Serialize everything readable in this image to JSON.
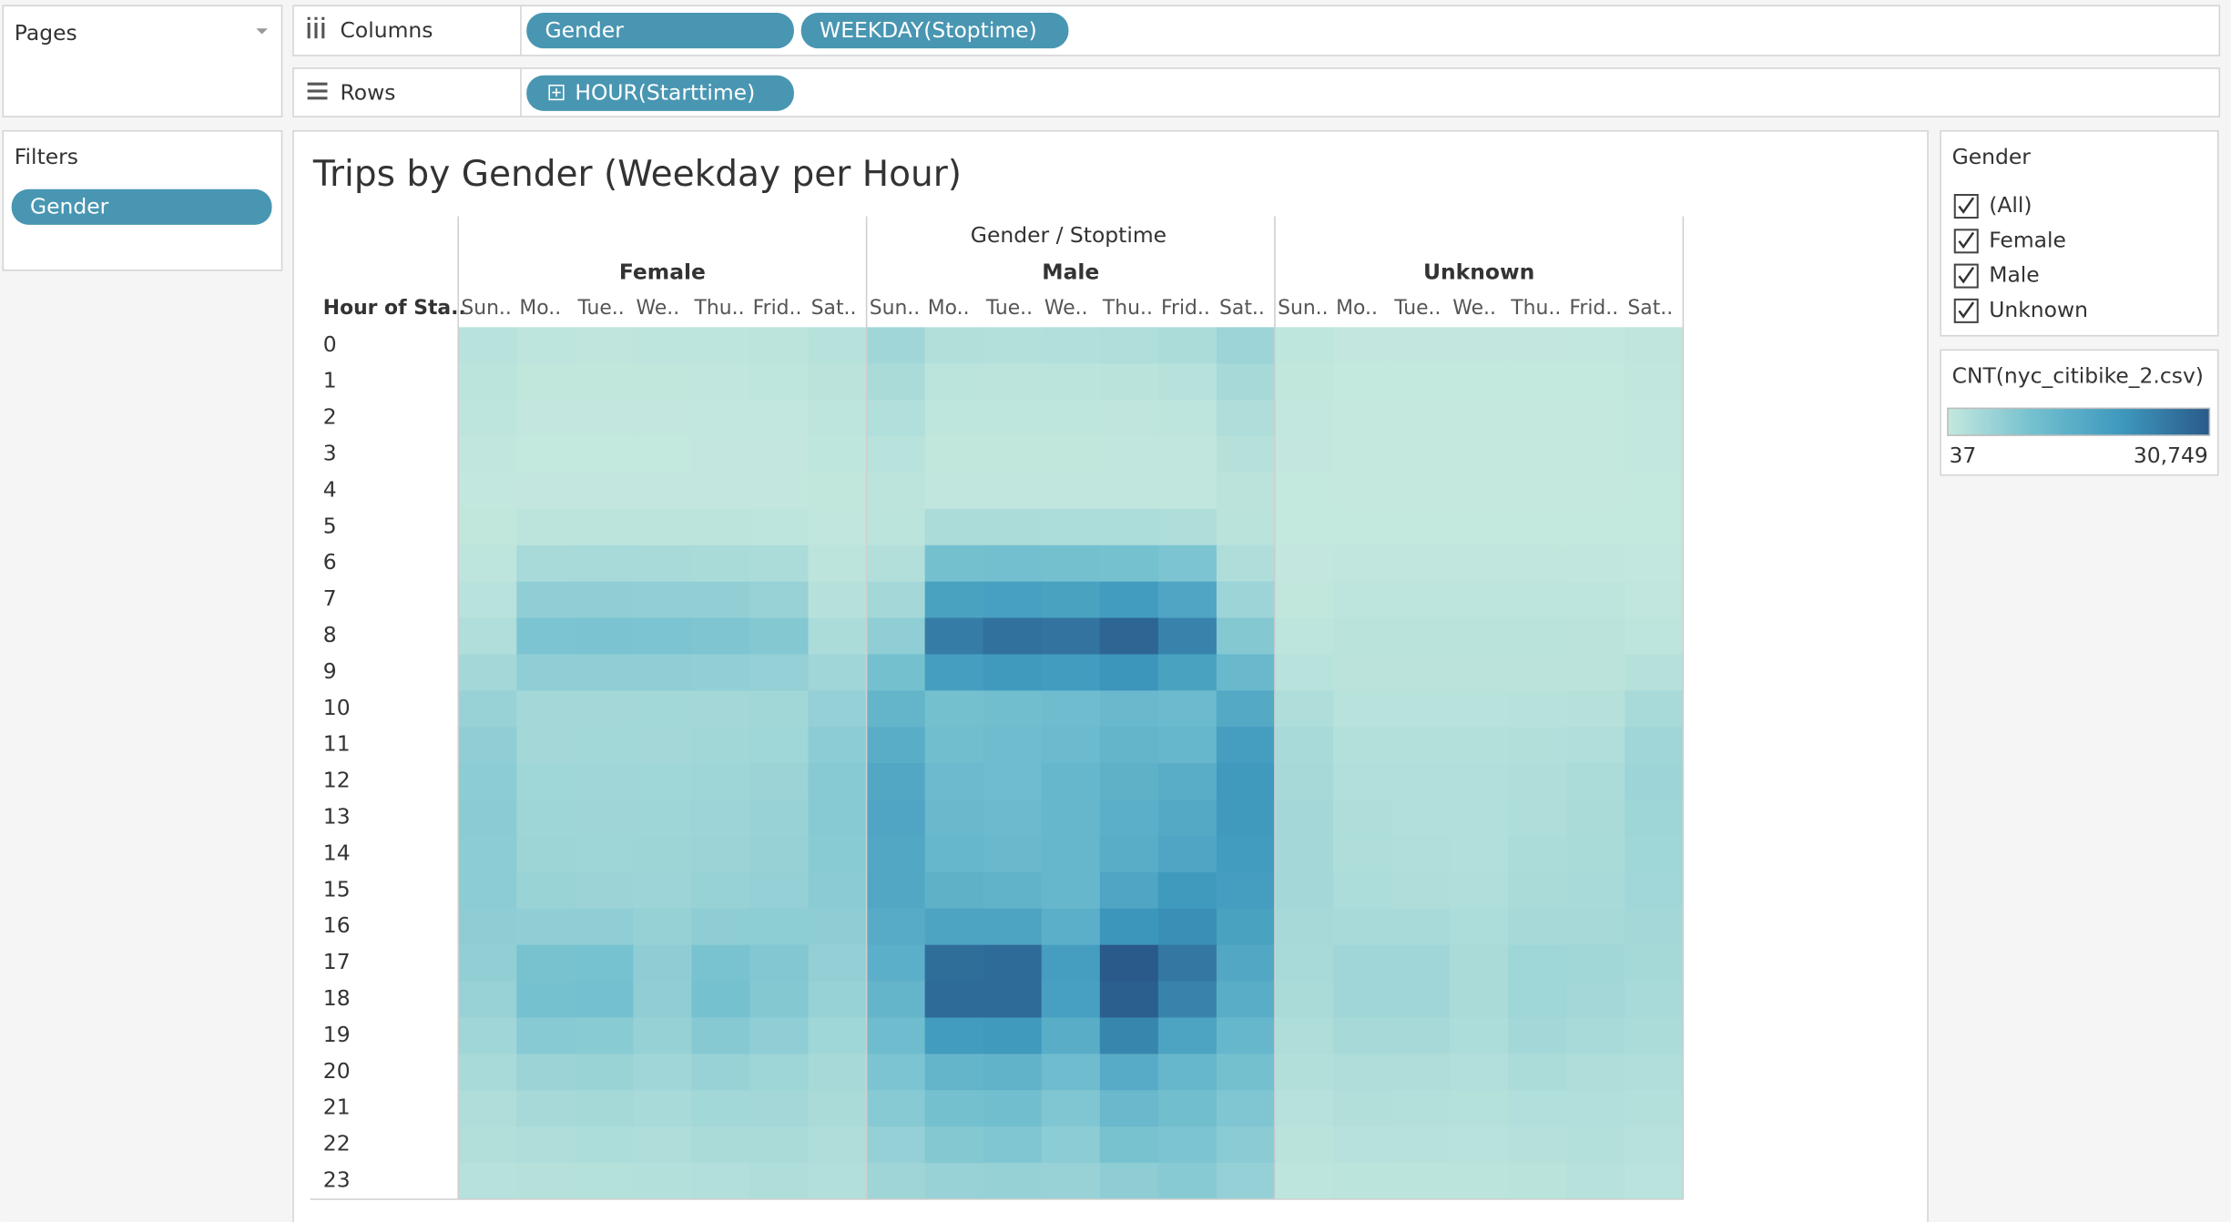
{
  "ui": {
    "pages_label": "Pages",
    "columns_label": "Columns",
    "column_pills": [
      "Gender",
      "WEEKDAY(Stoptime)"
    ],
    "rows_label": "Rows",
    "row_pills": [
      "HOUR(Starttime)"
    ],
    "filters_label": "Filters",
    "filter_pills": [
      "Gender"
    ],
    "gender_legend": {
      "title": "Gender",
      "items": [
        "(All)",
        "Female",
        "Male",
        "Unknown"
      ]
    }
  },
  "chart_data": {
    "type": "heatmap",
    "title": "Trips by Gender (Weekday per Hour)",
    "column_header": "Gender / Stoptime",
    "row_header": "Hour of Sta..",
    "categories": [
      "Sun..",
      "Mo..",
      "Tue..",
      "We..",
      "Thu..",
      "Frid..",
      "Sat.."
    ],
    "rows": [
      0,
      1,
      2,
      3,
      4,
      5,
      6,
      7,
      8,
      9,
      10,
      11,
      12,
      13,
      14,
      15,
      16,
      17,
      18,
      19,
      20,
      21,
      22,
      23
    ],
    "series": [
      {
        "name": "Female",
        "values": [
          [
            1500,
            800,
            700,
            800,
            900,
            1000,
            1600
          ],
          [
            1100,
            400,
            400,
            400,
            500,
            600,
            1200
          ],
          [
            800,
            200,
            200,
            200,
            300,
            300,
            900
          ],
          [
            500,
            150,
            150,
            150,
            200,
            200,
            600
          ],
          [
            300,
            200,
            200,
            200,
            200,
            200,
            400
          ],
          [
            400,
            1000,
            1000,
            1000,
            1000,
            900,
            500
          ],
          [
            900,
            3500,
            3600,
            3500,
            3400,
            3000,
            1000
          ],
          [
            1500,
            6500,
            6600,
            6400,
            6300,
            5500,
            1800
          ],
          [
            2500,
            9000,
            9200,
            9000,
            8800,
            8000,
            3000
          ],
          [
            4000,
            6500,
            6600,
            6500,
            6400,
            6000,
            4500
          ],
          [
            5500,
            4000,
            4000,
            4100,
            4200,
            4300,
            6000
          ],
          [
            6500,
            4200,
            4100,
            4200,
            4300,
            4600,
            7000
          ],
          [
            7000,
            4600,
            4500,
            4600,
            4800,
            5200,
            7500
          ],
          [
            7200,
            4800,
            4700,
            4800,
            5000,
            5500,
            7600
          ],
          [
            7000,
            4900,
            4800,
            4900,
            5200,
            5700,
            7400
          ],
          [
            7000,
            5300,
            5200,
            5000,
            5600,
            6000,
            7200
          ],
          [
            6800,
            6500,
            6600,
            5800,
            6800,
            6900,
            6800
          ],
          [
            6300,
            9500,
            9600,
            6700,
            9400,
            8200,
            6200
          ],
          [
            5500,
            9800,
            9900,
            6600,
            9800,
            8000,
            5600
          ],
          [
            4500,
            7500,
            7400,
            5800,
            7800,
            6500,
            4600
          ],
          [
            3500,
            5200,
            5300,
            4500,
            5500,
            4800,
            3800
          ],
          [
            2800,
            3800,
            3900,
            3500,
            4100,
            4000,
            3200
          ],
          [
            2200,
            2800,
            2900,
            2800,
            3200,
            3300,
            2800
          ],
          [
            1700,
            1800,
            1900,
            2000,
            2300,
            2600,
            2300
          ]
        ]
      },
      {
        "name": "Male",
        "values": [
          [
            4500,
            2200,
            2000,
            2300,
            2500,
            3000,
            5000
          ],
          [
            3300,
            1100,
            1000,
            1100,
            1300,
            1600,
            3800
          ],
          [
            2400,
            600,
            600,
            600,
            700,
            900,
            2800
          ],
          [
            1500,
            400,
            400,
            400,
            500,
            500,
            1800
          ],
          [
            1000,
            500,
            500,
            500,
            500,
            500,
            1200
          ],
          [
            1100,
            3000,
            3000,
            2900,
            2900,
            2700,
            1300
          ],
          [
            2200,
            10000,
            10200,
            10000,
            9800,
            9000,
            2800
          ],
          [
            4000,
            18000,
            18500,
            18000,
            19500,
            17000,
            5000
          ],
          [
            6500,
            25000,
            27000,
            26500,
            29000,
            24000,
            8000
          ],
          [
            10000,
            19000,
            20000,
            19500,
            21000,
            18000,
            12000
          ],
          [
            13000,
            10000,
            10500,
            11000,
            12000,
            11500,
            16000
          ],
          [
            15000,
            10500,
            11000,
            11500,
            13000,
            12500,
            19000
          ],
          [
            16500,
            11500,
            11000,
            12500,
            14000,
            15000,
            20000
          ],
          [
            17000,
            12000,
            11500,
            12500,
            14500,
            16000,
            20000
          ],
          [
            16500,
            12500,
            12000,
            12500,
            15000,
            17000,
            19500
          ],
          [
            16500,
            14000,
            13500,
            12500,
            17000,
            20000,
            19000
          ],
          [
            15500,
            17500,
            17500,
            14500,
            21000,
            22000,
            18000
          ],
          [
            14500,
            27500,
            28000,
            19000,
            30749,
            26000,
            16500
          ],
          [
            13000,
            28000,
            28000,
            18500,
            30000,
            24000,
            15000
          ],
          [
            11000,
            19500,
            20000,
            15000,
            23500,
            17500,
            12500
          ],
          [
            9000,
            13000,
            13500,
            11000,
            15500,
            12500,
            10000
          ],
          [
            7500,
            10000,
            10500,
            8500,
            12000,
            10500,
            8500
          ],
          [
            6000,
            8000,
            8500,
            7000,
            9500,
            9000,
            7200
          ],
          [
            4700,
            5500,
            5800,
            5500,
            6800,
            7500,
            6000
          ]
        ]
      },
      {
        "name": "Unknown",
        "values": [
          [
            600,
            200,
            200,
            200,
            200,
            300,
            700
          ],
          [
            400,
            100,
            100,
            100,
            100,
            150,
            500
          ],
          [
            300,
            60,
            60,
            60,
            70,
            80,
            350
          ],
          [
            200,
            40,
            37,
            40,
            40,
            50,
            250
          ],
          [
            120,
            40,
            40,
            40,
            40,
            50,
            150
          ],
          [
            100,
            150,
            150,
            150,
            150,
            150,
            120
          ],
          [
            200,
            500,
            500,
            500,
            500,
            450,
            250
          ],
          [
            400,
            900,
            900,
            900,
            900,
            800,
            500
          ],
          [
            800,
            1300,
            1300,
            1300,
            1300,
            1200,
            900
          ],
          [
            1500,
            1200,
            1200,
            1200,
            1200,
            1200,
            1800
          ],
          [
            2800,
            1500,
            1500,
            1500,
            1600,
            1800,
            3500
          ],
          [
            3500,
            2000,
            2000,
            2000,
            2200,
            2500,
            4500
          ],
          [
            3800,
            2400,
            2300,
            2300,
            2600,
            3000,
            5000
          ],
          [
            4000,
            2600,
            2400,
            2400,
            2800,
            3200,
            4800
          ],
          [
            4000,
            2600,
            2500,
            2400,
            3000,
            3400,
            4600
          ],
          [
            4000,
            2900,
            2700,
            2500,
            3200,
            3500,
            4400
          ],
          [
            3800,
            3500,
            3500,
            2900,
            3700,
            3800,
            4200
          ],
          [
            3500,
            4500,
            4500,
            3300,
            4600,
            4300,
            3900
          ],
          [
            3200,
            4500,
            4500,
            3300,
            4600,
            4200,
            3500
          ],
          [
            2800,
            3800,
            3700,
            2900,
            4000,
            3600,
            3000
          ],
          [
            2200,
            2800,
            2700,
            2300,
            3000,
            2800,
            2500
          ],
          [
            1700,
            2200,
            2100,
            1900,
            2400,
            2400,
            2100
          ],
          [
            1300,
            1700,
            1600,
            1500,
            1800,
            2000,
            1700
          ],
          [
            900,
            1100,
            1100,
            1100,
            1300,
            1600,
            1400
          ]
        ]
      }
    ],
    "color_legend_title": "CNT(nyc_citibike_2.csv)",
    "color_scale": [
      "#c4e8de",
      "#72bfcf",
      "#3d98bd",
      "#2a5a8a"
    ],
    "clim": [
      37,
      30749
    ],
    "cticks": [
      37,
      {
        "value": 30749,
        "label": "30,749"
      }
    ]
  }
}
